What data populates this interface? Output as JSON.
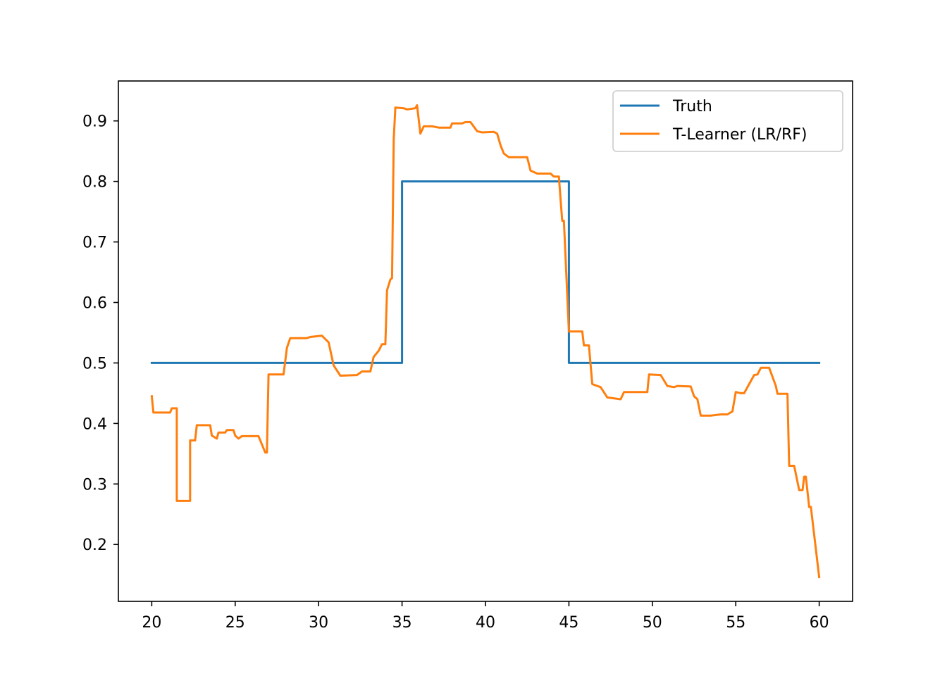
{
  "chart_data": {
    "type": "line",
    "title": "",
    "xlabel": "",
    "ylabel": "",
    "xlim": [
      18,
      62
    ],
    "ylim": [
      0.106,
      0.966
    ],
    "xticks": [
      20,
      25,
      30,
      35,
      40,
      45,
      50,
      55,
      60
    ],
    "yticks": [
      0.2,
      0.3,
      0.4,
      0.5,
      0.6,
      0.7,
      0.8,
      0.9
    ],
    "xtick_labels": [
      "20",
      "25",
      "30",
      "35",
      "40",
      "45",
      "50",
      "55",
      "60"
    ],
    "ytick_labels": [
      "0.2",
      "0.3",
      "0.4",
      "0.5",
      "0.6",
      "0.7",
      "0.8",
      "0.9"
    ],
    "grid": false,
    "legend_position": "upper right",
    "series": [
      {
        "name": "Truth",
        "color": "#1f77b4",
        "x": [
          20,
          35,
          35,
          45,
          45,
          60
        ],
        "y": [
          0.5,
          0.5,
          0.8,
          0.8,
          0.5,
          0.5
        ]
      },
      {
        "name": "T-Learner (LR/RF)",
        "color": "#ff7f0e",
        "x": [
          20,
          20.1,
          21.1,
          21.2,
          21.5,
          21.5,
          22.3,
          22.3,
          22.6,
          22.7,
          23.5,
          23.6,
          23.9,
          24.0,
          24.4,
          24.5,
          24.9,
          25.0,
          25.2,
          25.4,
          26.4,
          26.8,
          26.9,
          27.0,
          27.9,
          28.1,
          28.3,
          29.3,
          29.5,
          30.2,
          30.6,
          30.9,
          31.3,
          32.3,
          32.6,
          33.1,
          33.3,
          33.6,
          33.8,
          34.0,
          34.1,
          34.3,
          34.4,
          34.5,
          34.6,
          35.1,
          35.3,
          35.8,
          35.9,
          36.1,
          36.3,
          36.8,
          37.2,
          37.9,
          38.0,
          38.6,
          38.8,
          39.1,
          39.5,
          39.8,
          40.5,
          40.7,
          40.9,
          41.1,
          41.4,
          42.5,
          42.7,
          43.1,
          43.9,
          44.1,
          44.4,
          44.5,
          44.6,
          44.7,
          45.0,
          45.8,
          45.9,
          46.2,
          46.4,
          46.9,
          47.3,
          48.1,
          48.3,
          49.7,
          49.8,
          50.5,
          50.9,
          51.3,
          51.5,
          52.3,
          52.5,
          52.7,
          52.9,
          53.5,
          54.1,
          54.5,
          54.8,
          55.0,
          55.3,
          55.5,
          56.1,
          56.3,
          56.5,
          57.0,
          57.4,
          57.5,
          58.1,
          58.2,
          58.5,
          58.8,
          59.0,
          59.1,
          59.2,
          59.4,
          59.5,
          60.0
        ],
        "y": [
          0.445,
          0.418,
          0.418,
          0.425,
          0.425,
          0.272,
          0.272,
          0.372,
          0.372,
          0.397,
          0.397,
          0.38,
          0.375,
          0.385,
          0.385,
          0.389,
          0.389,
          0.38,
          0.375,
          0.379,
          0.379,
          0.352,
          0.352,
          0.481,
          0.481,
          0.525,
          0.541,
          0.541,
          0.543,
          0.545,
          0.534,
          0.496,
          0.479,
          0.48,
          0.486,
          0.486,
          0.51,
          0.52,
          0.531,
          0.531,
          0.62,
          0.638,
          0.64,
          0.87,
          0.922,
          0.921,
          0.919,
          0.921,
          0.926,
          0.879,
          0.891,
          0.891,
          0.889,
          0.889,
          0.896,
          0.896,
          0.898,
          0.898,
          0.883,
          0.881,
          0.882,
          0.879,
          0.86,
          0.846,
          0.84,
          0.84,
          0.818,
          0.813,
          0.813,
          0.808,
          0.808,
          0.77,
          0.735,
          0.735,
          0.552,
          0.552,
          0.529,
          0.529,
          0.465,
          0.46,
          0.443,
          0.44,
          0.452,
          0.452,
          0.481,
          0.48,
          0.462,
          0.46,
          0.462,
          0.461,
          0.445,
          0.44,
          0.413,
          0.413,
          0.415,
          0.415,
          0.42,
          0.452,
          0.45,
          0.45,
          0.48,
          0.481,
          0.492,
          0.492,
          0.462,
          0.449,
          0.449,
          0.33,
          0.33,
          0.29,
          0.29,
          0.312,
          0.312,
          0.262,
          0.262,
          0.146
        ]
      }
    ]
  }
}
